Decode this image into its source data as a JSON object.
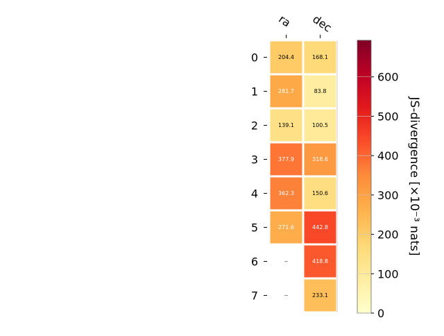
{
  "chart_data": {
    "type": "heatmap",
    "columns": [
      "ra",
      "dec"
    ],
    "rows": [
      "0",
      "1",
      "2",
      "3",
      "4",
      "5",
      "6",
      "7"
    ],
    "values": [
      [
        204.4,
        168.1
      ],
      [
        281.7,
        83.8
      ],
      [
        139.1,
        100.5
      ],
      [
        377.9,
        318.6
      ],
      [
        362.3,
        150.6
      ],
      [
        271.6,
        442.8
      ],
      [
        null,
        418.8
      ],
      [
        null,
        233.1
      ]
    ],
    "missing_label": "--",
    "colorbar": {
      "label": "JS-divergence [×10⁻³ nats]",
      "range": [
        0,
        693
      ],
      "ticks": [
        0,
        100,
        200,
        300,
        400,
        500,
        600
      ],
      "colormap": "YlOrRd"
    }
  }
}
